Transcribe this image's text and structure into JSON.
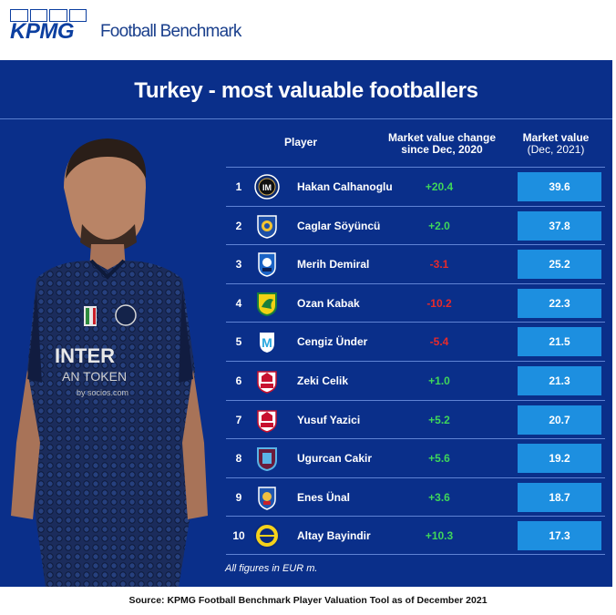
{
  "header": {
    "logo_text": "KPMG",
    "brand_text": "Football Benchmark"
  },
  "chart_data": {
    "type": "table",
    "title": "Turkey - most valuable footballers",
    "columns": {
      "player": "Player",
      "change_line1": "Market value change",
      "change_line2": "since Dec, 2020",
      "value_line1": "Market value",
      "value_line2": "(Dec, 2021)"
    },
    "rows": [
      {
        "rank": "1",
        "club": "inter-badge",
        "player": "Hakan Calhanoglu",
        "change": "+20.4",
        "value": "39.6"
      },
      {
        "rank": "2",
        "club": "leicester-badge",
        "player": "Caglar Söyüncü",
        "change": "+2.0",
        "value": "37.8"
      },
      {
        "rank": "3",
        "club": "atalanta-badge",
        "player": "Merih Demiral",
        "change": "-3.1",
        "value": "25.2"
      },
      {
        "rank": "4",
        "club": "norwich-badge",
        "player": "Ozan Kabak",
        "change": "-10.2",
        "value": "22.3"
      },
      {
        "rank": "5",
        "club": "marseille-badge",
        "player": "Cengiz Ünder",
        "change": "-5.4",
        "value": "21.5"
      },
      {
        "rank": "6",
        "club": "lille-badge",
        "player": "Zeki Celik",
        "change": "+1.0",
        "value": "21.3"
      },
      {
        "rank": "7",
        "club": "lille-badge",
        "player": "Yusuf Yazici",
        "change": "+5.2",
        "value": "20.7"
      },
      {
        "rank": "8",
        "club": "trabzonspor-badge",
        "player": "Ugurcan Cakir",
        "change": "+5.6",
        "value": "19.2"
      },
      {
        "rank": "9",
        "club": "getafe-badge",
        "player": "Enes Ünal",
        "change": "+3.6",
        "value": "18.7"
      },
      {
        "rank": "10",
        "club": "fenerbahce-badge",
        "player": "Altay Bayindir",
        "change": "+10.3",
        "value": "17.3"
      }
    ],
    "note": "All figures in EUR m.",
    "colors": {
      "background": "#0a2f8a",
      "value_cell": "#1d8fe0",
      "positive": "#3fd65a",
      "negative": "#e82a2a"
    }
  },
  "source": "Source: KPMG Football Benchmark Player Valuation Tool as of December 2021"
}
